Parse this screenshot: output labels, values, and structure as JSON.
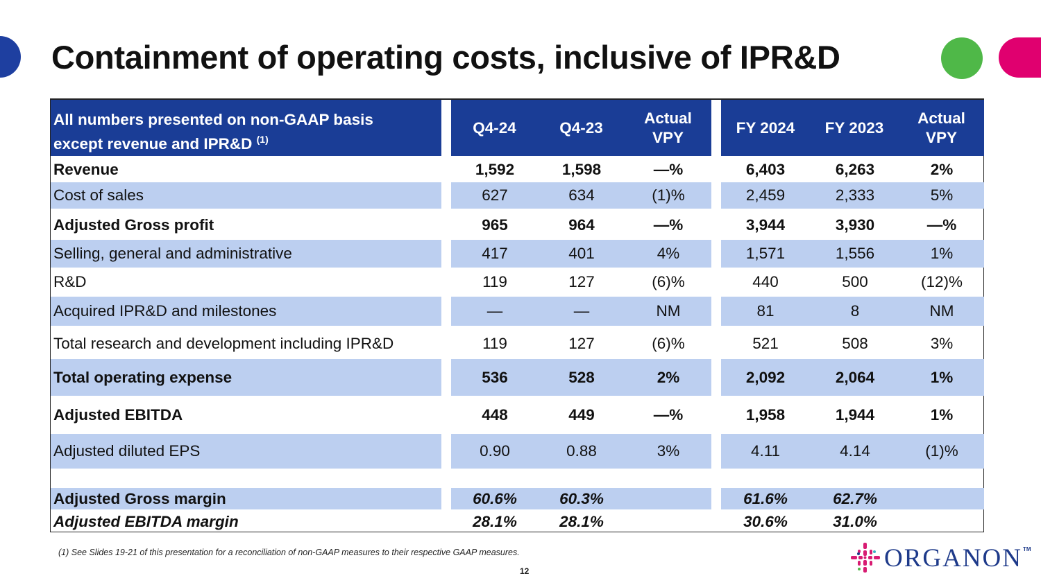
{
  "title": "Containment of operating costs, inclusive of IPR&D",
  "table": {
    "header": {
      "label_line1": "All numbers presented on non-GAAP basis",
      "label_line2": "except revenue and IPR&D",
      "label_footnote_ref": "(1)",
      "columns": [
        {
          "line1": "Q4-24",
          "line2": ""
        },
        {
          "line1": "Q4-23",
          "line2": ""
        },
        {
          "line1": "Actual",
          "line2": "VPY"
        },
        {
          "line1": "FY 2024",
          "line2": ""
        },
        {
          "line1": "FY 2023",
          "line2": ""
        },
        {
          "line1": "Actual",
          "line2": "VPY"
        }
      ]
    },
    "rows": [
      {
        "label": "Revenue",
        "values": [
          "1,592",
          "1,598",
          "—%",
          "6,403",
          "6,263",
          "2%"
        ]
      },
      {
        "label": "Cost of sales",
        "values": [
          "627",
          "634",
          "(1)%",
          "2,459",
          "2,333",
          "5%"
        ]
      },
      {
        "label": "Adjusted Gross profit",
        "values": [
          "965",
          "964",
          "—%",
          "3,944",
          "3,930",
          "—%"
        ]
      },
      {
        "label": "Selling, general and administrative",
        "values": [
          "417",
          "401",
          "4%",
          "1,571",
          "1,556",
          "1%"
        ]
      },
      {
        "label": "R&D",
        "values": [
          "119",
          "127",
          "(6)%",
          "440",
          "500",
          "(12)%"
        ]
      },
      {
        "label": "Acquired IPR&D and milestones",
        "values": [
          "—",
          "—",
          "NM",
          "81",
          "8",
          "NM"
        ]
      },
      {
        "label": "Total research and development including IPR&D",
        "values": [
          "119",
          "127",
          "(6)%",
          "521",
          "508",
          "3%"
        ]
      },
      {
        "label": "Total operating expense",
        "values": [
          "536",
          "528",
          "2%",
          "2,092",
          "2,064",
          "1%"
        ]
      },
      {
        "label": "Adjusted EBITDA",
        "values": [
          "448",
          "449",
          "—%",
          "1,958",
          "1,944",
          "1%"
        ]
      },
      {
        "label": "Adjusted diluted EPS",
        "values": [
          "0.90",
          "0.88",
          "3%",
          "4.11",
          "4.14",
          "(1)%"
        ]
      },
      {
        "label": "Adjusted Gross margin",
        "values": [
          "60.6%",
          "60.3%",
          "",
          "61.6%",
          "62.7%",
          ""
        ]
      },
      {
        "label": "Adjusted EBITDA margin",
        "values": [
          "28.1%",
          "28.1%",
          "",
          "30.6%",
          "31.0%",
          ""
        ]
      }
    ]
  },
  "footnote": "(1) See Slides 19-21 of this presentation for a reconciliation of non-GAAP measures to their respective GAAP measures.",
  "page_number": "12",
  "logo": {
    "text": "ORGANON",
    "tm": "TM"
  },
  "colors": {
    "header_blue": "#1a3d96",
    "band_blue": "#bccff0",
    "accent_blue": "#1e3fa0",
    "accent_green": "#4fb848",
    "accent_pink": "#e0006f",
    "logo_blue": "#1e3a8a"
  }
}
